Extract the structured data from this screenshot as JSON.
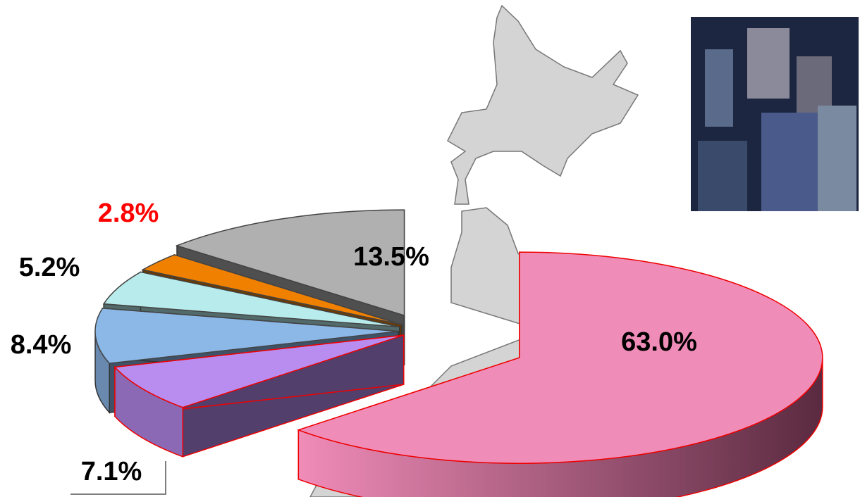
{
  "chart_data": {
    "type": "pie",
    "values": [
      63.0,
      7.1,
      8.4,
      5.2,
      2.8,
      13.5
    ],
    "value_labels": [
      "63.0%",
      "7.1%",
      "8.4%",
      "5.2%",
      "2.8%",
      "13.5%"
    ],
    "colors": [
      "#f08cb8",
      "#b98cf0",
      "#8cb8e8",
      "#b8ecec",
      "#f08000",
      "#b0b0b0"
    ],
    "value_label_colors": [
      "#000000",
      "#000000",
      "#000000",
      "#000000",
      "#ff0000",
      "#000000"
    ]
  }
}
